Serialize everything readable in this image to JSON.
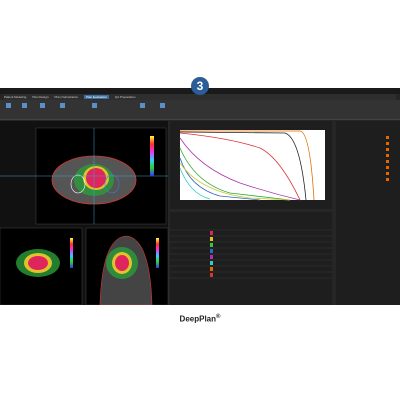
{
  "badge": "3",
  "tabs": [
    "Patient Modeling",
    "Plan Design",
    "Plan Optimization",
    "Plan Evaluation",
    "QA Preparation"
  ],
  "caption": {
    "title": "DeepPlan",
    "mark": "®"
  }
}
